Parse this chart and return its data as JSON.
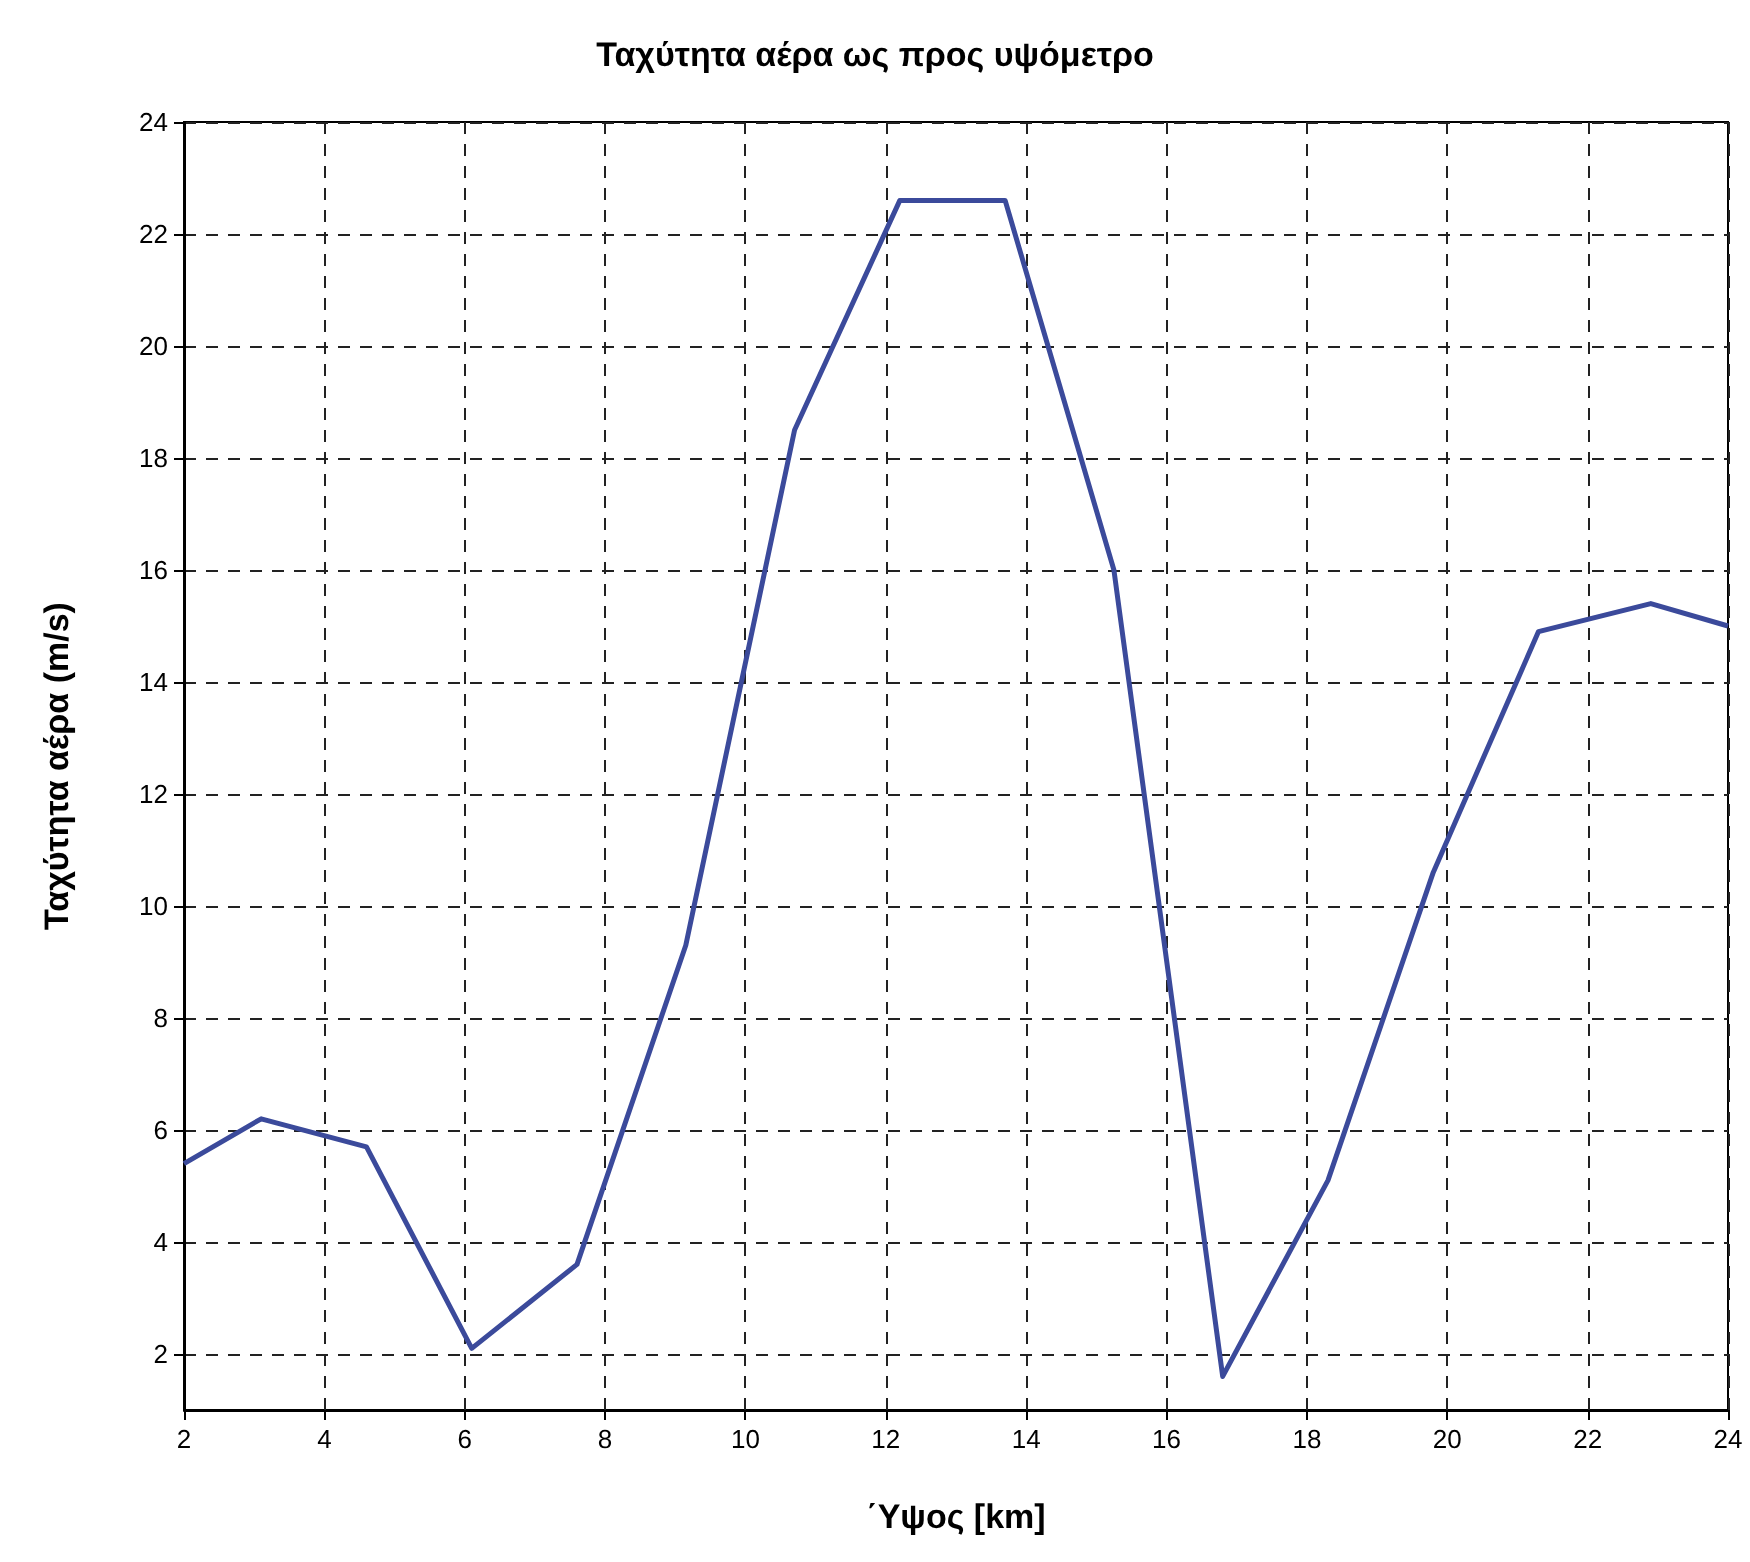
{
  "chart_data": {
    "type": "line",
    "title": "Ταχύτητα αέρα ως προς υψόμετρο",
    "xlabel": "΄Υψος [km]",
    "ylabel": "Ταχύτητα αέρα (m/s)",
    "x": [
      2,
      3.1,
      4.6,
      6.1,
      7.6,
      9.15,
      10.7,
      12.2,
      13.7,
      15.25,
      16.8,
      18.3,
      19.8,
      21.3,
      22.9,
      24
    ],
    "series": [
      {
        "color": "#3b4a9b",
        "values": [
          5.4,
          6.2,
          5.7,
          2.1,
          3.6,
          9.3,
          18.5,
          22.6,
          22.6,
          16.0,
          1.6,
          5.1,
          10.6,
          14.9,
          15.4,
          15.0
        ]
      }
    ],
    "xlim": [
      2,
      24
    ],
    "xticks": [
      2,
      4,
      6,
      8,
      10,
      12,
      14,
      16,
      18,
      20,
      22,
      24
    ],
    "ylim": [
      1,
      24
    ],
    "yticks": [
      2,
      4,
      6,
      8,
      10,
      12,
      14,
      16,
      18,
      20,
      22,
      24
    ],
    "grid": true,
    "marker": "none",
    "line_style": "solid"
  }
}
